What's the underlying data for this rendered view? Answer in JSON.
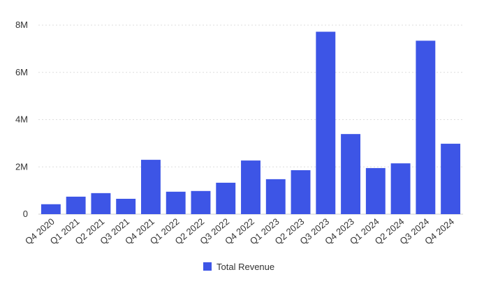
{
  "chart_data": {
    "type": "bar",
    "title": "",
    "xlabel": "",
    "ylabel": "",
    "categories": [
      "Q4 2020",
      "Q1 2021",
      "Q2 2021",
      "Q3 2021",
      "Q4 2021",
      "Q1 2022",
      "Q2 2022",
      "Q3 2022",
      "Q4 2022",
      "Q1 2023",
      "Q2 2023",
      "Q3 2023",
      "Q4 2023",
      "Q1 2024",
      "Q2 2024",
      "Q3 2024",
      "Q4 2024"
    ],
    "series": [
      {
        "name": "Total Revenue",
        "color": "#3d55e6",
        "values": [
          420000,
          740000,
          890000,
          650000,
          2300000,
          950000,
          980000,
          1330000,
          2270000,
          1480000,
          1860000,
          7720000,
          3390000,
          1950000,
          2150000,
          7340000,
          2980000
        ]
      }
    ],
    "ylim": [
      0,
      8000000
    ],
    "yticks": [
      {
        "value": 0,
        "label": "0"
      },
      {
        "value": 2000000,
        "label": "2M"
      },
      {
        "value": 4000000,
        "label": "4M"
      },
      {
        "value": 6000000,
        "label": "6M"
      },
      {
        "value": 8000000,
        "label": "8M"
      }
    ],
    "grid": true,
    "legend_position": "bottom-center"
  }
}
